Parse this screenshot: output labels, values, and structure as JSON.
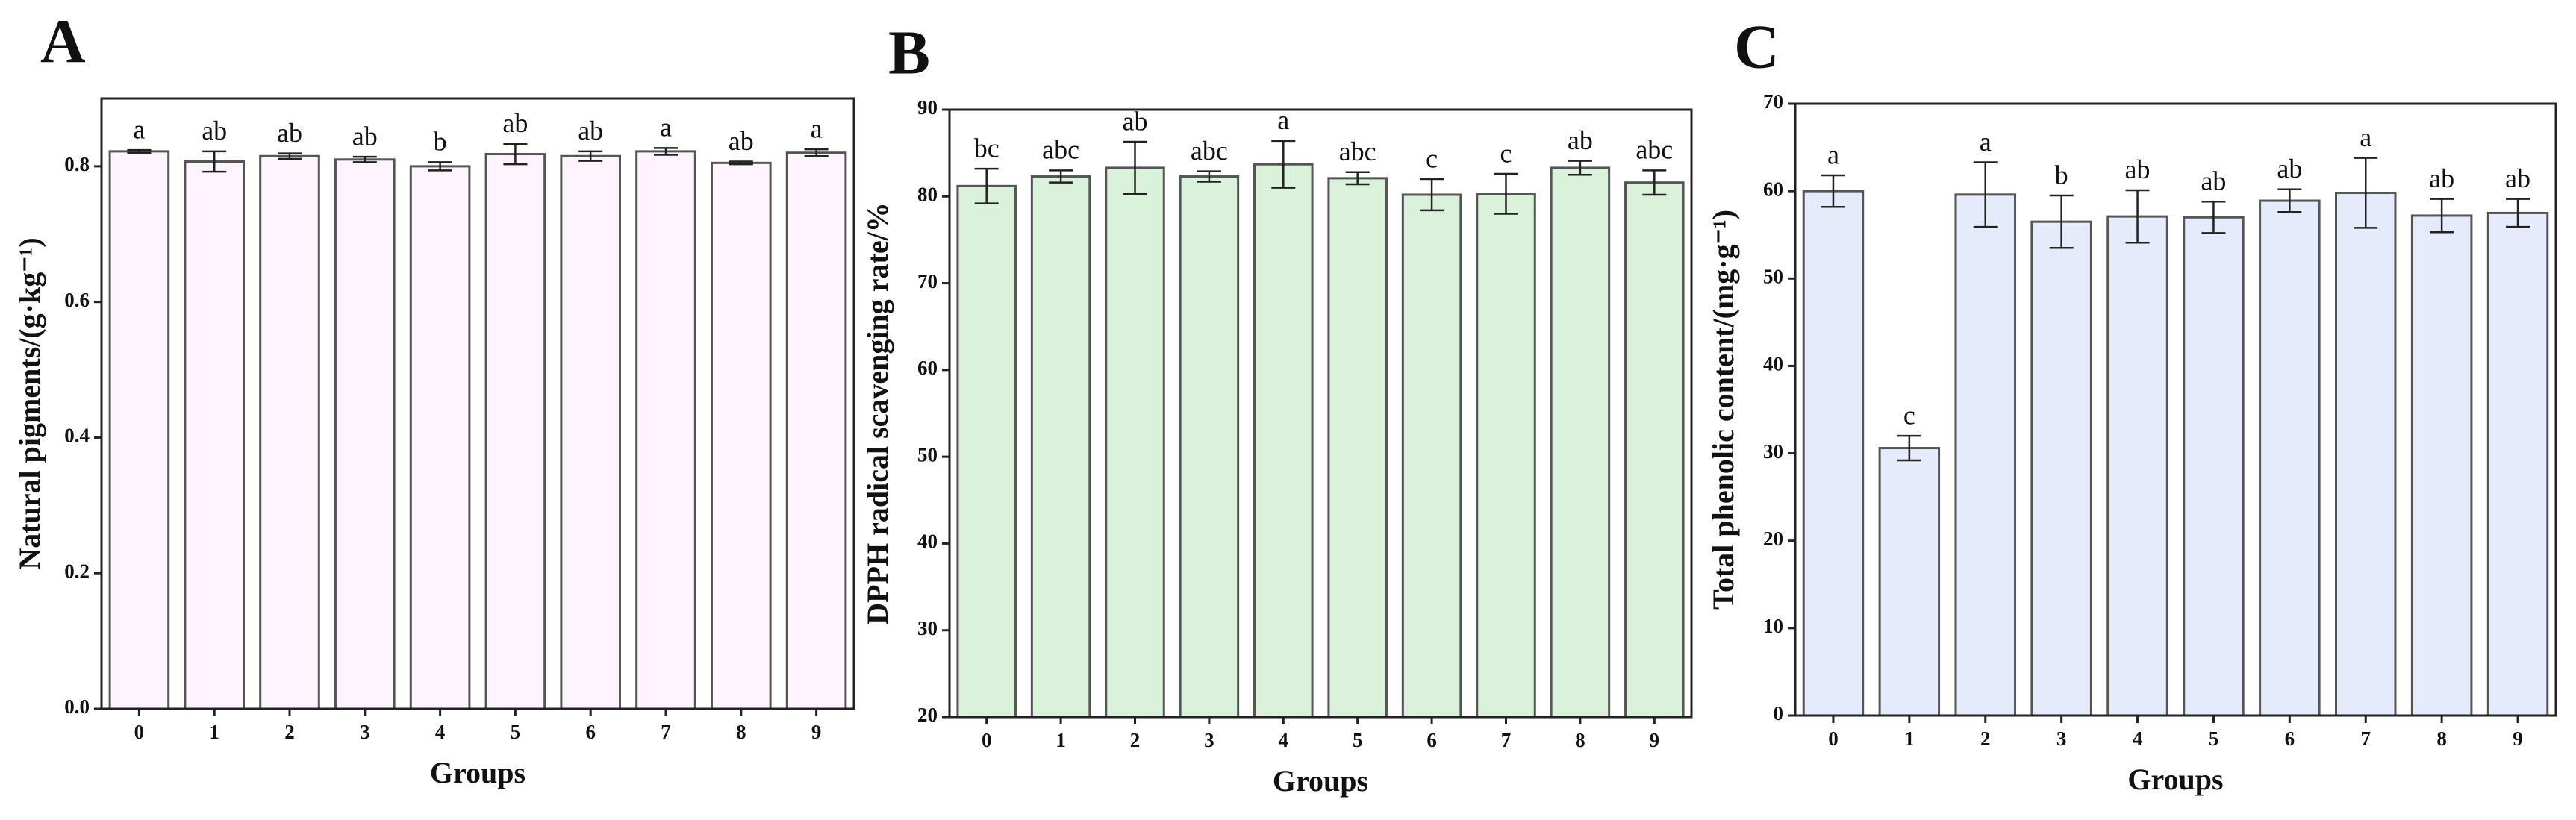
{
  "chart_data": [
    {
      "type": "bar",
      "panel": "A",
      "xlabel": "Groups",
      "ylabel": "Natural pigments/(g·kg⁻¹)",
      "color": "#fdf4fd",
      "categories": [
        "0",
        "1",
        "2",
        "3",
        "4",
        "5",
        "6",
        "7",
        "8",
        "9"
      ],
      "values": [
        0.822,
        0.807,
        0.815,
        0.81,
        0.8,
        0.818,
        0.815,
        0.822,
        0.805,
        0.82
      ],
      "errors": [
        0.002,
        0.015,
        0.004,
        0.004,
        0.006,
        0.015,
        0.007,
        0.005,
        0.002,
        0.005
      ],
      "letters": [
        "a",
        "ab",
        "ab",
        "ab",
        "b",
        "ab",
        "ab",
        "a",
        "ab",
        "a"
      ],
      "ylim": [
        0,
        0.9
      ],
      "yticks": [
        {
          "value": 0,
          "label": "0.0"
        },
        0.2,
        0.4,
        0.6,
        0.8
      ]
    },
    {
      "type": "bar",
      "panel": "B",
      "xlabel": "Groups",
      "ylabel": "DPPH radical scavenging rate/%",
      "color": "#d9f2d9",
      "categories": [
        "0",
        "1",
        "2",
        "3",
        "4",
        "5",
        "6",
        "7",
        "8",
        "9"
      ],
      "values": [
        81.2,
        82.3,
        83.3,
        82.3,
        83.7,
        82.1,
        80.2,
        80.3,
        83.3,
        81.6
      ],
      "errors": [
        2,
        0.7,
        3,
        0.6,
        2.7,
        0.7,
        1.8,
        2.3,
        0.8,
        1.4
      ],
      "letters": [
        "bc",
        "abc",
        "ab",
        "abc",
        "a",
        "abc",
        "c",
        "c",
        "ab",
        "abc"
      ],
      "ylim": [
        20,
        90
      ],
      "yticks": [
        20,
        30,
        40,
        50,
        60,
        70,
        80,
        90
      ]
    },
    {
      "type": "bar",
      "panel": "C",
      "xlabel": "Groups",
      "ylabel": "Total phenolic content/(mg·g⁻¹)",
      "color": "#e6ebfb",
      "categories": [
        "0",
        "1",
        "2",
        "3",
        "4",
        "5",
        "6",
        "7",
        "8",
        "9"
      ],
      "values": [
        60,
        30.6,
        59.6,
        56.5,
        57.1,
        57,
        58.9,
        59.8,
        57.2,
        57.5
      ],
      "errors": [
        1.8,
        1.4,
        3.7,
        3,
        3,
        1.8,
        1.3,
        4,
        1.9,
        1.6
      ],
      "letters": [
        "a",
        "c",
        "a",
        "b",
        "ab",
        "ab",
        "ab",
        "a",
        "ab",
        "ab"
      ],
      "ylim": [
        0,
        70
      ],
      "yticks": [
        0,
        10,
        20,
        30,
        40,
        50,
        60,
        70
      ]
    }
  ]
}
